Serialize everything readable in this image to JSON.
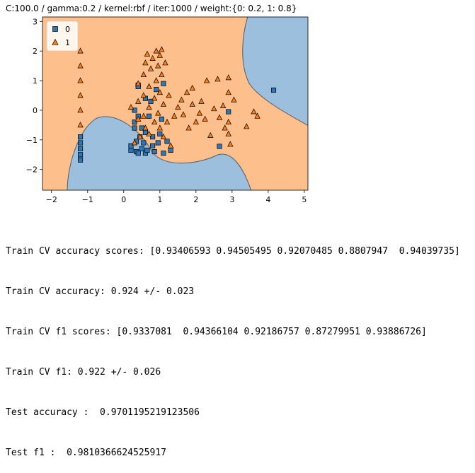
{
  "chart_data": {
    "type": "scatter",
    "title": "C:100.0 / gamma:0.2 / kernel:rbf / iter:1000 / weight:{0: 0.2, 1: 0.8}",
    "xlabel": "",
    "ylabel": "",
    "xlim": [
      -2.25,
      5.1
    ],
    "ylim": [
      -2.7,
      3.15
    ],
    "x_ticks": [
      -2,
      -1,
      0,
      1,
      2,
      3,
      4,
      5
    ],
    "y_ticks": [
      -2,
      -1,
      0,
      1,
      2,
      3
    ],
    "x_tick_labels": [
      "−2",
      "−1",
      "0",
      "1",
      "2",
      "3",
      "4",
      "5"
    ],
    "y_tick_labels": [
      "−2",
      "−1",
      "0",
      "1",
      "2",
      "3"
    ],
    "grid": false,
    "legend": "top-left",
    "regions": {
      "class_0_color": "#9bbfdc",
      "class_1_color": "#fdc08d",
      "boundary_color": "#5a5a5a"
    },
    "series": [
      {
        "name": "0",
        "marker": "square",
        "color": "#2f77b4",
        "points": [
          [
            -1.2,
            -1.68
          ],
          [
            -1.2,
            -1.5
          ],
          [
            -1.2,
            -1.3
          ],
          [
            -1.2,
            -1.1
          ],
          [
            -1.2,
            -0.9
          ],
          [
            0.2,
            -1.35
          ],
          [
            0.2,
            -1.2
          ],
          [
            0.3,
            -0.6
          ],
          [
            0.3,
            -0.4
          ],
          [
            0.35,
            -1.4
          ],
          [
            0.35,
            -1.05
          ],
          [
            0.4,
            -1.45
          ],
          [
            0.4,
            -0.2
          ],
          [
            0.45,
            -0.9
          ],
          [
            0.5,
            -1.3
          ],
          [
            0.55,
            -1.1
          ],
          [
            0.6,
            -0.75
          ],
          [
            0.6,
            -1.45
          ],
          [
            0.65,
            -1.35
          ],
          [
            0.7,
            -0.2
          ],
          [
            0.75,
            0.3
          ],
          [
            0.8,
            -0.9
          ],
          [
            0.85,
            -1.4
          ],
          [
            0.9,
            0.7
          ],
          [
            0.95,
            -1.1
          ],
          [
            1.05,
            -0.3
          ],
          [
            1.1,
            0.9
          ],
          [
            1.1,
            -1.45
          ],
          [
            1.2,
            -1.05
          ],
          [
            1.3,
            -1.35
          ],
          [
            2.65,
            -1.22
          ],
          [
            2.9,
            -0.05
          ],
          [
            4.15,
            0.68
          ],
          [
            0.4,
            0.85
          ],
          [
            0.4,
            0.8
          ],
          [
            0.5,
            -0.6
          ],
          [
            0.3,
            0.0
          ],
          [
            1.0,
            -0.8
          ],
          [
            0.8,
            -1.2
          ],
          [
            0.6,
            0.4
          ]
        ]
      },
      {
        "name": "1",
        "marker": "triangle",
        "color": "#ff7f0e",
        "points": [
          [
            -1.2,
            2.0
          ],
          [
            -1.2,
            1.5
          ],
          [
            -1.2,
            1.0
          ],
          [
            -1.2,
            0.5
          ],
          [
            -1.2,
            0.0
          ],
          [
            -1.2,
            -0.5
          ],
          [
            0.4,
            0.9
          ],
          [
            0.4,
            0.3
          ],
          [
            0.4,
            -0.3
          ],
          [
            0.45,
            -0.9
          ],
          [
            0.55,
            1.2
          ],
          [
            0.55,
            0.5
          ],
          [
            0.55,
            -0.2
          ],
          [
            0.6,
            1.6
          ],
          [
            0.6,
            -0.6
          ],
          [
            0.7,
            0.8
          ],
          [
            0.7,
            0.1
          ],
          [
            0.7,
            -0.8
          ],
          [
            0.75,
            1.4
          ],
          [
            0.8,
            1.75
          ],
          [
            0.85,
            0.4
          ],
          [
            0.85,
            -0.4
          ],
          [
            0.9,
            2.0
          ],
          [
            0.9,
            1.0
          ],
          [
            0.95,
            1.5
          ],
          [
            0.95,
            -0.1
          ],
          [
            1.0,
            1.85
          ],
          [
            1.0,
            0.6
          ],
          [
            1.0,
            -0.6
          ],
          [
            1.05,
            2.05
          ],
          [
            1.05,
            1.2
          ],
          [
            1.1,
            0.2
          ],
          [
            1.1,
            -0.9
          ],
          [
            1.15,
            1.6
          ],
          [
            1.2,
            -0.4
          ],
          [
            1.25,
            0.5
          ],
          [
            1.3,
            -1.2
          ],
          [
            1.4,
            -0.2
          ],
          [
            1.5,
            0.1
          ],
          [
            1.6,
            0.35
          ],
          [
            1.65,
            -0.15
          ],
          [
            1.75,
            0.6
          ],
          [
            1.8,
            -0.6
          ],
          [
            1.9,
            0.2
          ],
          [
            1.9,
            0.75
          ],
          [
            2.0,
            -0.4
          ],
          [
            2.1,
            -0.1
          ],
          [
            2.15,
            0.3
          ],
          [
            2.25,
            -0.3
          ],
          [
            2.3,
            1.0
          ],
          [
            2.4,
            -0.85
          ],
          [
            2.5,
            0.05
          ],
          [
            2.6,
            1.05
          ],
          [
            2.65,
            -0.25
          ],
          [
            2.75,
            0.15
          ],
          [
            2.8,
            -0.6
          ],
          [
            2.9,
            1.1
          ],
          [
            2.9,
            0.6
          ],
          [
            2.9,
            -0.4
          ],
          [
            2.9,
            -0.8
          ],
          [
            2.95,
            -1.15
          ],
          [
            3.05,
            0.35
          ],
          [
            3.4,
            -0.55
          ],
          [
            3.6,
            -0.05
          ],
          [
            3.7,
            -0.2
          ],
          [
            0.3,
            -1.1
          ],
          [
            0.65,
            1.9
          ],
          [
            0.2,
            0.1
          ]
        ]
      }
    ]
  },
  "output_lines": [
    "Train CV accuracy scores: [0.93406593 0.94505495 0.92070485 0.8807947  0.94039735]",
    "Train CV accuracy: 0.924 +/- 0.023",
    "Train CV f1 scores: [0.9337081  0.94366104 0.92186757 0.87279951 0.93886726]",
    "Train CV f1: 0.922 +/- 0.026",
    "Test accuracy :  0.9701195219123506",
    "Test f1 :  0.9810366624525917"
  ]
}
